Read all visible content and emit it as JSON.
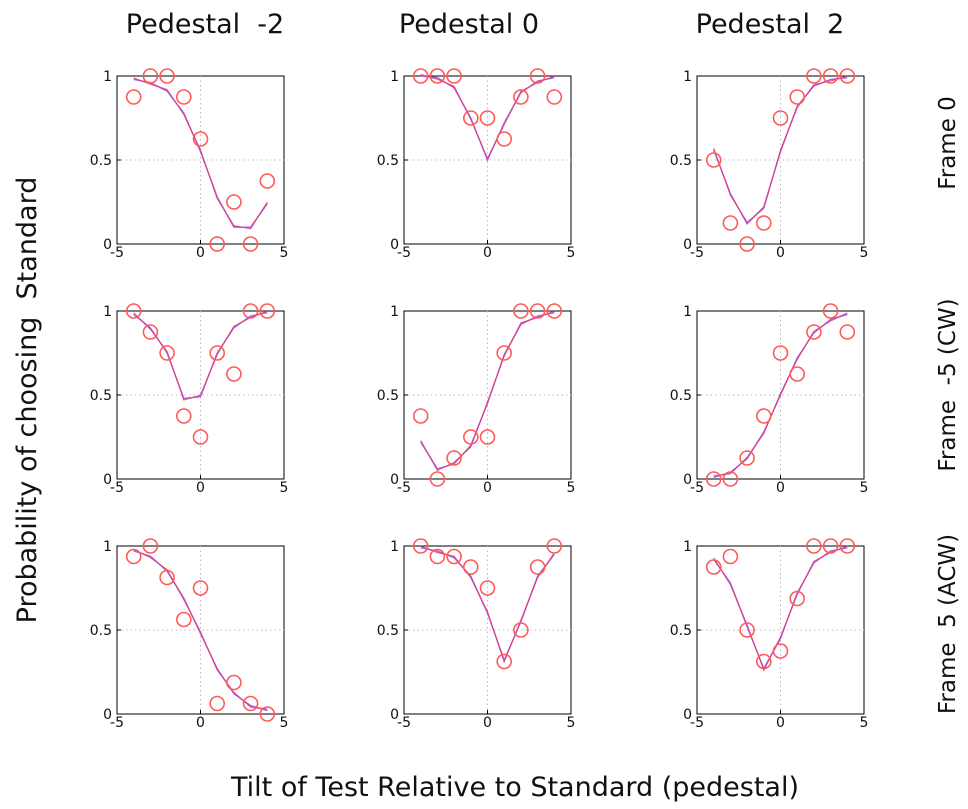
{
  "figure": {
    "x_axis_title": "Tilt of Test Relative to Standard (pedestal)",
    "y_axis_title": "Probability of choosing  Standard"
  },
  "columns": [
    "Pedestal  -2",
    "Pedestal 0",
    "Pedestal  2"
  ],
  "rows": [
    "Frame 0",
    "Frame  -5 (CW)",
    "Frame  5 (ACW)"
  ],
  "colors": {
    "data_marker": "#ff5a5a",
    "fit_line_a": "#e23a6a",
    "fit_line_b": "#a060ff",
    "grid": "#bbbbbb"
  },
  "chart_data": [
    {
      "type": "scatter",
      "row": "Frame 0",
      "column": "Pedestal  -2",
      "xlim": [
        -5,
        5
      ],
      "ylim": [
        0,
        1
      ],
      "grid": true,
      "xticks": [
        "-5",
        "0",
        "5"
      ],
      "yticks": [
        "0",
        "0.5",
        "1"
      ],
      "points": {
        "x": [
          -4,
          -3,
          -2,
          -1,
          0,
          1,
          2,
          3,
          4
        ],
        "y": [
          0.875,
          1,
          1,
          0.875,
          0.625,
          0,
          0.25,
          0,
          0.375
        ]
      },
      "fit": {
        "x": [
          -4,
          -3,
          -2,
          -1,
          0,
          1,
          2,
          3,
          4
        ],
        "y": [
          0.98,
          0.96,
          0.91,
          0.78,
          0.55,
          0.28,
          0.1,
          0.1,
          0.24
        ]
      }
    },
    {
      "type": "scatter",
      "row": "Frame 0",
      "column": "Pedestal 0",
      "xlim": [
        -5,
        5
      ],
      "ylim": [
        0,
        1
      ],
      "grid": true,
      "xticks": [
        "-5",
        "0",
        "5"
      ],
      "yticks": [
        "0",
        "0.5",
        "1"
      ],
      "points": {
        "x": [
          -4,
          -3,
          -2,
          -1,
          0,
          1,
          2,
          3,
          4
        ],
        "y": [
          1,
          1,
          1,
          0.75,
          0.75,
          0.625,
          0.875,
          1,
          0.875
        ]
      },
      "fit": {
        "x": [
          -4,
          -3,
          -2,
          -1,
          0,
          1,
          2,
          3,
          4
        ],
        "y": [
          1,
          0.99,
          0.93,
          0.75,
          0.5,
          0.72,
          0.9,
          0.97,
          0.99
        ]
      }
    },
    {
      "type": "scatter",
      "row": "Frame 0",
      "column": "Pedestal  2",
      "xlim": [
        -5,
        5
      ],
      "ylim": [
        0,
        1
      ],
      "grid": true,
      "xticks": [
        "-5",
        "0",
        "5"
      ],
      "yticks": [
        "0",
        "0.5",
        "1"
      ],
      "points": {
        "x": [
          -4,
          -3,
          -2,
          -1,
          0,
          1,
          2,
          3,
          4
        ],
        "y": [
          0.5,
          0.125,
          0,
          0.125,
          0.75,
          0.875,
          1,
          1,
          1
        ]
      },
      "fit": {
        "x": [
          -4,
          -3,
          -2,
          -1,
          0,
          1,
          2,
          3,
          4
        ],
        "y": [
          0.56,
          0.3,
          0.12,
          0.22,
          0.55,
          0.82,
          0.94,
          0.98,
          0.99
        ]
      }
    },
    {
      "type": "scatter",
      "row": "Frame  -5 (CW)",
      "column": "Pedestal  -2",
      "xlim": [
        -5,
        5
      ],
      "ylim": [
        0,
        1
      ],
      "grid": true,
      "xticks": [
        "-5",
        "0",
        "5"
      ],
      "yticks": [
        "0",
        "0.5",
        "1"
      ],
      "points": {
        "x": [
          -4,
          -3,
          -2,
          -1,
          0,
          1,
          2,
          3,
          4
        ],
        "y": [
          1,
          0.875,
          0.75,
          0.375,
          0.25,
          0.75,
          0.625,
          1,
          1
        ]
      },
      "fit": {
        "x": [
          -4,
          -3,
          -2,
          -1,
          0,
          1,
          2,
          3,
          4
        ],
        "y": [
          0.98,
          0.9,
          0.75,
          0.48,
          0.49,
          0.75,
          0.9,
          0.97,
          0.99
        ]
      }
    },
    {
      "type": "scatter",
      "row": "Frame  -5 (CW)",
      "column": "Pedestal 0",
      "xlim": [
        -5,
        5
      ],
      "ylim": [
        0,
        1
      ],
      "grid": true,
      "xticks": [
        "-5",
        "0",
        "5"
      ],
      "yticks": [
        "0",
        "0.5",
        "1"
      ],
      "points": {
        "x": [
          -4,
          -3,
          -2,
          -1,
          0,
          1,
          2,
          3,
          4
        ],
        "y": [
          0.375,
          0,
          0.125,
          0.25,
          0.25,
          0.75,
          1,
          1,
          1
        ]
      },
      "fit": {
        "x": [
          -4,
          -3,
          -2,
          -1,
          0,
          1,
          2,
          3,
          4
        ],
        "y": [
          0.22,
          0.06,
          0.09,
          0.2,
          0.45,
          0.74,
          0.92,
          0.97,
          0.99
        ]
      }
    },
    {
      "type": "scatter",
      "row": "Frame  -5 (CW)",
      "column": "Pedestal  2",
      "xlim": [
        -5,
        5
      ],
      "ylim": [
        0,
        1
      ],
      "grid": true,
      "xticks": [
        "-5",
        "0",
        "5"
      ],
      "yticks": [
        "0",
        "0.5",
        "1"
      ],
      "points": {
        "x": [
          -4,
          -3,
          -2,
          -1,
          0,
          1,
          2,
          3,
          4
        ],
        "y": [
          0,
          0,
          0.125,
          0.375,
          0.75,
          0.625,
          0.875,
          1,
          0.875
        ]
      },
      "fit": {
        "x": [
          -4,
          -3,
          -2,
          -1,
          0,
          1,
          2,
          3,
          4
        ],
        "y": [
          0.01,
          0.04,
          0.12,
          0.28,
          0.5,
          0.72,
          0.87,
          0.95,
          0.98
        ]
      }
    },
    {
      "type": "scatter",
      "row": "Frame  5 (ACW)",
      "column": "Pedestal  -2",
      "xlim": [
        -5,
        5
      ],
      "ylim": [
        0,
        1
      ],
      "grid": true,
      "xticks": [
        "-5",
        "0",
        "5"
      ],
      "yticks": [
        "0",
        "0.5",
        "1"
      ],
      "points": {
        "x": [
          -4,
          -3,
          -2,
          -1,
          0,
          1,
          2,
          3,
          4
        ],
        "y": [
          0.9375,
          1,
          0.8125,
          0.5625,
          0.75,
          0.0625,
          0.1875,
          0.0625,
          0
        ]
      },
      "fit": {
        "x": [
          -4,
          -3,
          -2,
          -1,
          0,
          1,
          2,
          3,
          4
        ],
        "y": [
          0.97,
          0.94,
          0.85,
          0.69,
          0.48,
          0.27,
          0.12,
          0.05,
          0.02
        ]
      }
    },
    {
      "type": "scatter",
      "row": "Frame  5 (ACW)",
      "column": "Pedestal 0",
      "xlim": [
        -5,
        5
      ],
      "ylim": [
        0,
        1
      ],
      "grid": true,
      "xticks": [
        "-5",
        "0",
        "5"
      ],
      "yticks": [
        "0",
        "0.5",
        "1"
      ],
      "points": {
        "x": [
          -4,
          -3,
          -2,
          -1,
          0,
          1,
          2,
          3,
          4
        ],
        "y": [
          1,
          0.9375,
          0.9375,
          0.875,
          0.75,
          0.3125,
          0.5,
          0.875,
          1
        ]
      },
      "fit": {
        "x": [
          -4,
          -3,
          -2,
          -1,
          0,
          1,
          2,
          3,
          4
        ],
        "y": [
          0.99,
          0.97,
          0.93,
          0.82,
          0.6,
          0.32,
          0.55,
          0.82,
          0.95
        ]
      }
    },
    {
      "type": "scatter",
      "row": "Frame  5 (ACW)",
      "column": "Pedestal  2",
      "xlim": [
        -5,
        5
      ],
      "ylim": [
        0,
        1
      ],
      "grid": true,
      "xticks": [
        "-5",
        "0",
        "5"
      ],
      "yticks": [
        "0",
        "0.5",
        "1"
      ],
      "points": {
        "x": [
          -4,
          -3,
          -2,
          -1,
          0,
          1,
          2,
          3,
          4
        ],
        "y": [
          0.875,
          0.9375,
          0.5,
          0.3125,
          0.375,
          0.6875,
          1,
          1,
          1
        ]
      },
      "fit": {
        "x": [
          -4,
          -3,
          -2,
          -1,
          0,
          1,
          2,
          3,
          4
        ],
        "y": [
          0.92,
          0.78,
          0.52,
          0.27,
          0.45,
          0.72,
          0.9,
          0.97,
          0.99
        ]
      }
    }
  ]
}
